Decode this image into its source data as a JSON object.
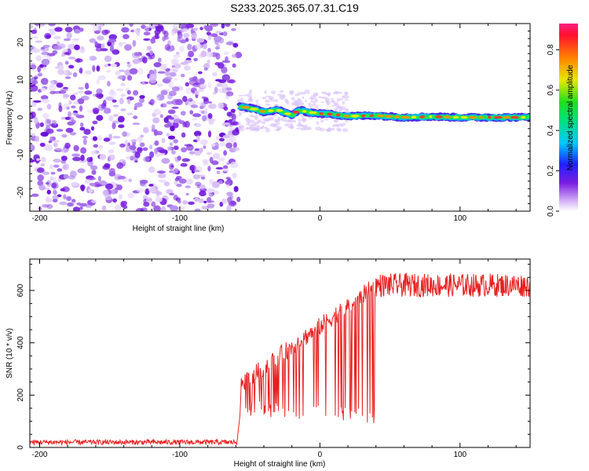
{
  "title": "S233.2025.365.07.31.C19",
  "colors": {
    "snr_line": "#e82020",
    "axes": "#000000",
    "noise": "#7a1ee0"
  },
  "chart_data": [
    {
      "type": "heatmap",
      "xlabel": "Height of straight line (km)",
      "ylabel": "Frequency (Hz)",
      "xlim": [
        -207,
        150
      ],
      "ylim": [
        -25,
        25
      ],
      "xticks": [
        -200,
        -100,
        0,
        100
      ],
      "yticks": [
        -20,
        -10,
        0,
        10,
        20
      ],
      "signal_start_km": -58,
      "noise_region_km": [
        -207,
        -58
      ],
      "ridge_center_hz": [
        [
          -58,
          3
        ],
        [
          -50,
          2.5
        ],
        [
          -40,
          1.5
        ],
        [
          -30,
          2
        ],
        [
          -20,
          0.5
        ],
        [
          -15,
          2
        ],
        [
          -10,
          1.5
        ],
        [
          0,
          1
        ],
        [
          10,
          0.8
        ],
        [
          20,
          0.3
        ],
        [
          40,
          0.5
        ],
        [
          60,
          0
        ],
        [
          80,
          0.2
        ],
        [
          100,
          0
        ],
        [
          120,
          0
        ],
        [
          150,
          0
        ]
      ],
      "colorbar": {
        "label": "Normalized spectral amplitude",
        "ticks": [
          0.0,
          0.2,
          0.4,
          0.6,
          0.8
        ],
        "tick_labels": [
          "0.0",
          "0.2",
          "0.4",
          "0.6",
          "0.8"
        ],
        "range": [
          0,
          0.93
        ]
      }
    },
    {
      "type": "line",
      "xlabel": "Height of straight line (km)",
      "ylabel": "SNR (10 * v/v)",
      "xlim": [
        -207,
        150
      ],
      "ylim": [
        0,
        720
      ],
      "xticks": [
        -200,
        -100,
        0,
        100
      ],
      "yticks": [
        0,
        200,
        400,
        600
      ],
      "series": [
        {
          "name": "SNR",
          "segments": [
            {
              "x": [
                -207,
                -59
              ],
              "mean": 20,
              "noise": 12
            },
            {
              "x": [
                -57,
                40
              ],
              "low_start": 150,
              "low_end": 120,
              "high_start": 240,
              "high_end": 620
            },
            {
              "x": [
                40,
                150
              ],
              "mean": 620,
              "noise": 45
            }
          ]
        }
      ]
    }
  ]
}
